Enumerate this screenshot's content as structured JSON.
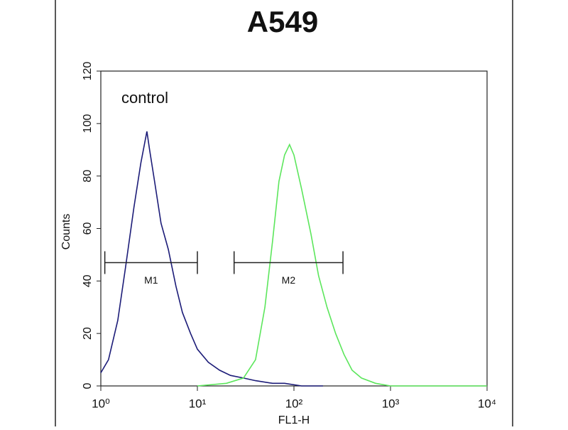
{
  "chart_data": {
    "type": "line",
    "title": "A549",
    "x_label": "FL1-H",
    "y_label": "Counts",
    "annotation": "control",
    "xscale": "log",
    "xlim": [
      1,
      10000
    ],
    "ylim": [
      0,
      120
    ],
    "xticks": [
      {
        "value": 1,
        "label": "10⁰"
      },
      {
        "value": 10,
        "label": "10¹"
      },
      {
        "value": 100,
        "label": "10²"
      },
      {
        "value": 1000,
        "label": "10³"
      },
      {
        "value": 10000,
        "label": "10⁴"
      }
    ],
    "yticks": [
      0,
      20,
      40,
      60,
      80,
      100,
      120
    ],
    "series": [
      {
        "color": "#1c1c78",
        "x": [
          1,
          1.2,
          1.5,
          1.8,
          2.2,
          2.6,
          3.0,
          3.2,
          3.6,
          4.2,
          5,
          6,
          7,
          8.5,
          10,
          13,
          17,
          22,
          30,
          40,
          60,
          80,
          120,
          200
        ],
        "values": [
          5,
          10,
          25,
          45,
          68,
          85,
          97,
          90,
          78,
          62,
          52,
          38,
          28,
          20,
          14,
          9,
          6,
          4,
          3,
          2,
          1,
          1,
          0,
          0
        ]
      },
      {
        "color": "#5ce65c",
        "x": [
          10,
          20,
          30,
          40,
          50,
          60,
          70,
          80,
          90,
          100,
          120,
          150,
          180,
          220,
          270,
          330,
          400,
          500,
          700,
          1000,
          3000,
          10000
        ],
        "values": [
          0,
          1,
          3,
          10,
          30,
          55,
          78,
          88,
          92,
          88,
          75,
          58,
          42,
          30,
          20,
          12,
          6,
          3,
          1,
          0,
          0,
          0
        ]
      }
    ],
    "markers": [
      {
        "label": "M1",
        "range": [
          1.1,
          10
        ],
        "level": 47
      },
      {
        "label": "M2",
        "range": [
          24,
          322
        ],
        "level": 47
      }
    ]
  }
}
